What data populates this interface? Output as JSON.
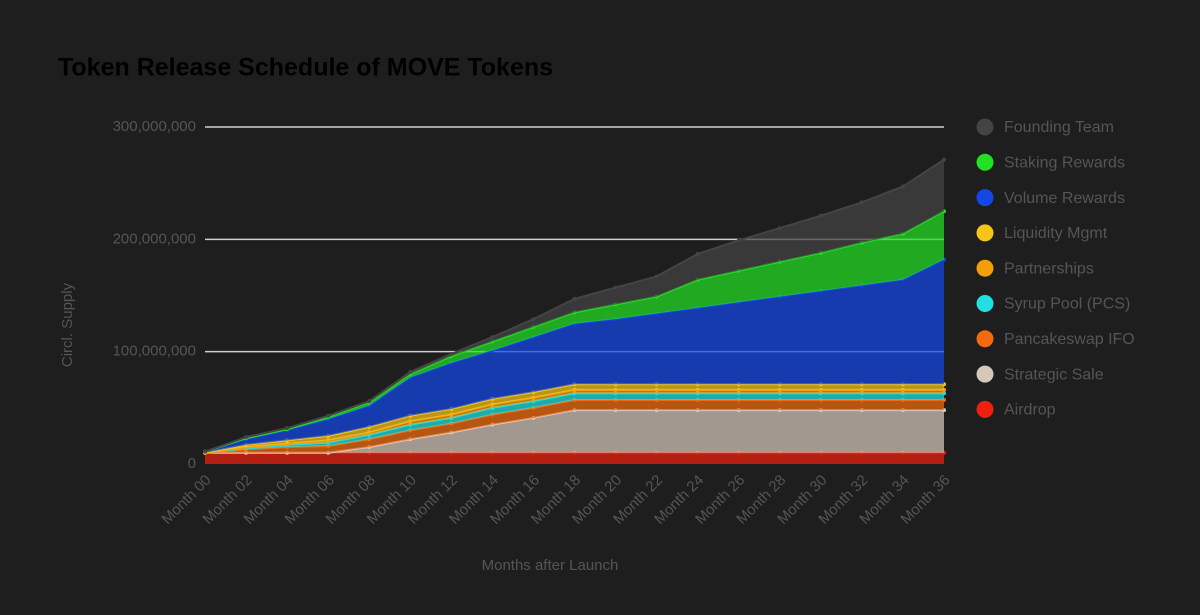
{
  "chart_data": {
    "type": "stacked-area",
    "title": "Token Release Schedule of MOVE Tokens",
    "x_label": "Months after Launch",
    "y_label": "Circl. Supply",
    "categories": [
      "Month 00",
      "Month 02",
      "Month 04",
      "Month 06",
      "Month 08",
      "Month 10",
      "Month 12",
      "Month 14",
      "Month 16",
      "Month 18",
      "Month 20",
      "Month 22",
      "Month 24",
      "Month 26",
      "Month 28",
      "Month 30",
      "Month 32",
      "Month 34",
      "Month 36"
    ],
    "ylim": [
      0,
      300000000
    ],
    "yticks": [
      0,
      {
        "value": 100000000,
        "label": "100,000,000"
      },
      {
        "value": 200000000,
        "label": "200,000,000"
      },
      {
        "value": 300000000,
        "label": "300,000,000"
      }
    ],
    "grid": true,
    "legend": "right",
    "series": [
      {
        "name": "Founding Team",
        "color": "#444444",
        "values": [
          0,
          1000000,
          1000000,
          1000000,
          1000000,
          2000000,
          2000000,
          4000000,
          7000000,
          12000000,
          15000000,
          18000000,
          23000000,
          27000000,
          30000000,
          33000000,
          36000000,
          42000000,
          46000000
        ]
      },
      {
        "name": "Staking Rewards",
        "color": "#22e022",
        "values": [
          0,
          1000000,
          1000000,
          2000000,
          3000000,
          3000000,
          6000000,
          8000000,
          9000000,
          10000000,
          13000000,
          15000000,
          25000000,
          28000000,
          31000000,
          34000000,
          38000000,
          41000000,
          43000000
        ]
      },
      {
        "name": "Volume Rewards",
        "color": "#1447e6",
        "values": [
          1000000,
          5000000,
          9000000,
          15000000,
          19000000,
          34000000,
          41000000,
          43000000,
          49000000,
          54000000,
          58000000,
          63000000,
          68000000,
          73000000,
          78000000,
          83000000,
          88000000,
          93000000,
          111000000
        ]
      },
      {
        "name": "Liquidity Mgmt",
        "color": "#f5c518",
        "values": [
          0,
          2000000,
          3000000,
          4000000,
          5000000,
          5000000,
          5000000,
          5000000,
          5000000,
          5000000,
          5000000,
          5000000,
          5000000,
          5000000,
          5000000,
          5000000,
          5000000,
          5000000,
          5000000
        ]
      },
      {
        "name": "Partnerships",
        "color": "#f59e0b",
        "values": [
          0,
          1000000,
          1000000,
          2000000,
          2000000,
          3000000,
          3000000,
          3000000,
          3000000,
          3000000,
          3000000,
          3000000,
          3000000,
          3000000,
          3000000,
          3000000,
          3000000,
          3000000,
          3000000
        ]
      },
      {
        "name": "Syrup Pool (PCS)",
        "color": "#22e0e0",
        "values": [
          0,
          1000000,
          2000000,
          3000000,
          4000000,
          5000000,
          5000000,
          6000000,
          6000000,
          6000000,
          6000000,
          6000000,
          6000000,
          6000000,
          6000000,
          6000000,
          6000000,
          6000000,
          6000000
        ]
      },
      {
        "name": "Pancakeswap IFO",
        "color": "#f26b0f",
        "values": [
          0,
          3000000,
          5000000,
          6000000,
          7000000,
          8000000,
          8000000,
          9000000,
          9000000,
          9000000,
          9000000,
          9000000,
          9000000,
          9000000,
          9000000,
          9000000,
          9000000,
          9000000,
          9000000
        ]
      },
      {
        "name": "Strategic Sale",
        "color": "#d6c7bb",
        "values": [
          0,
          0,
          0,
          0,
          5000000,
          12000000,
          18000000,
          25000000,
          31000000,
          38000000,
          38000000,
          38000000,
          38000000,
          38000000,
          38000000,
          38000000,
          38000000,
          38000000,
          38000000
        ]
      },
      {
        "name": "Airdrop",
        "color": "#ef2010",
        "values": [
          10000000,
          10000000,
          10000000,
          10000000,
          10000000,
          10000000,
          10000000,
          10000000,
          10000000,
          10000000,
          10000000,
          10000000,
          10000000,
          10000000,
          10000000,
          10000000,
          10000000,
          10000000,
          10000000
        ]
      }
    ]
  }
}
